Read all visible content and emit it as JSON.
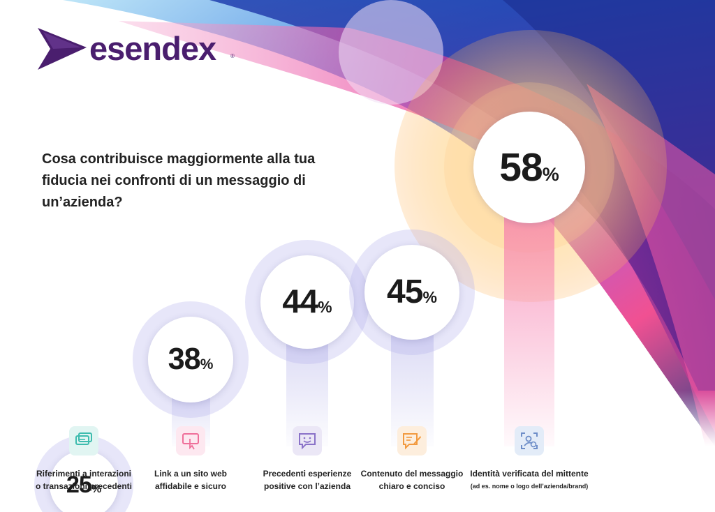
{
  "brand": {
    "name": "esendex",
    "registered_mark": "®"
  },
  "question": "Cosa contribuisce maggiormente alla tua fiducia nei confronti di un messaggio di un’azienda?",
  "colors": {
    "brand_purple": "#4a1e6e",
    "text_dark": "#1b1b1b"
  },
  "chart_data": {
    "type": "bar",
    "title": "Cosa contribuisce maggiormente alla tua fiducia nei confronti di un messaggio di un’azienda?",
    "value_suffix": "%",
    "ylim": [
      0,
      100
    ],
    "series": [
      {
        "values": [
          25,
          38,
          44,
          45,
          58
        ],
        "value_labels": [
          "25",
          "38",
          "44",
          "45",
          "58"
        ]
      }
    ],
    "categories": [
      {
        "line1": "Riferimenti a interazioni",
        "line2": "o transazioni precedenti",
        "note": "",
        "icon": "chat-bubbles-icon",
        "icon_bg": "#e1f5f2",
        "icon_color": "#3dbcae"
      },
      {
        "line1": "Link a un sito web",
        "line2": "affidabile e sicuro",
        "note": "",
        "icon": "link-cursor-icon",
        "icon_bg": "#fde8f0",
        "icon_color": "#ef6f9a"
      },
      {
        "line1": "Precedenti esperienze",
        "line2": "positive con l’azienda",
        "note": "",
        "icon": "smiley-message-icon",
        "icon_bg": "#ebe7f6",
        "icon_color": "#8a72c8"
      },
      {
        "line1": "Contenuto del messaggio",
        "line2": "chiaro e conciso",
        "note": "",
        "icon": "edit-message-icon",
        "icon_bg": "#fdeedd",
        "icon_color": "#f29a3f"
      },
      {
        "line1": "Identità verificata del mittente",
        "line2": "",
        "note": "(ad es. nome o logo dell’azienda/brand)",
        "icon": "verified-identity-icon",
        "icon_bg": "#e3ecf8",
        "icon_color": "#6e8ec8"
      }
    ]
  }
}
